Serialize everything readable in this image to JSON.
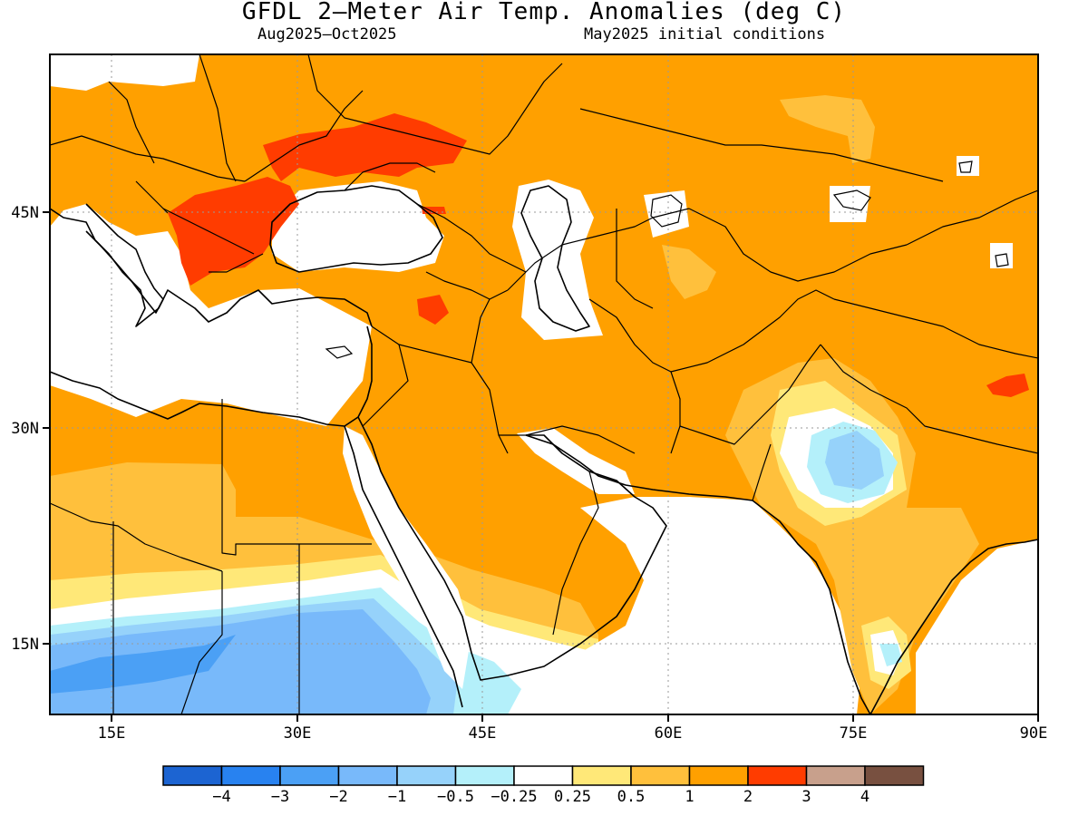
{
  "title": "GFDL 2—Meter Air Temp. Anomalies (deg C)",
  "subtitle_left": "Aug2025—Oct2025",
  "subtitle_right": "May2025 initial conditions",
  "map": {
    "lon_range": [
      10,
      90
    ],
    "lat_range": [
      10,
      55
    ],
    "lon_ticks": [
      "15E",
      "30E",
      "45E",
      "60E",
      "75E",
      "90E"
    ],
    "lat_ticks": [
      "45N",
      "30N",
      "15N"
    ]
  },
  "colorbar": {
    "colors": [
      "#1c64d2",
      "#2882f0",
      "#4ba0f5",
      "#78b9fa",
      "#96d2fa",
      "#b4f0fa",
      "#ffffff",
      "#ffe878",
      "#ffc03c",
      "#ffa000",
      "#ff3c00",
      "#c8a08c",
      "#785040"
    ],
    "labels": [
      "-4",
      "-3",
      "-2",
      "-1",
      "-0.5",
      "-0.25",
      "0.25",
      "0.5",
      "1",
      "2",
      "3",
      "4"
    ]
  },
  "colors": {
    "anomaly_1_2": "#ffa000",
    "anomaly_2_3": "#ff3c00",
    "anomaly_05_1": "#ffc03c",
    "anomaly_025_05": "#ffe878",
    "neutral": "#ffffff",
    "neg_025_05": "#b4f0fa",
    "neg_05_1": "#96d2fa",
    "neg_1_2": "#78b9fa",
    "neg_2_3": "#4ba0f5"
  }
}
